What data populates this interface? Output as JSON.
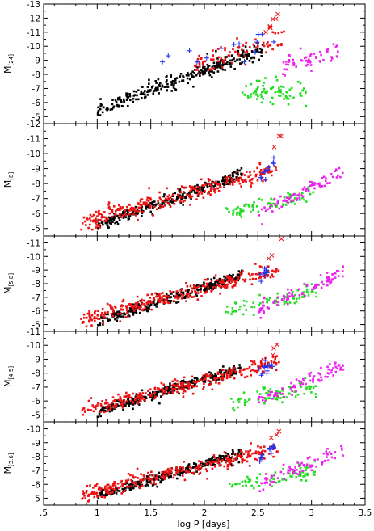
{
  "figure": {
    "xlabel": "log P [days]",
    "colors": {
      "black": "#000000",
      "red": "#ee1111",
      "green": "#22dd22",
      "magenta": "#ee22ee",
      "blue": "#2233ee"
    }
  },
  "chart_data": [
    {
      "type": "scatter",
      "panel": 1,
      "ylabel_main": "M",
      "ylabel_sub": "[24]",
      "xlim": [
        0.5,
        3.5
      ],
      "ylim": [
        -4.5,
        -13
      ],
      "xticks": [
        ".5",
        "1",
        "1.5",
        "2",
        "2.5",
        "3",
        "3.5"
      ],
      "xtick_values": [
        0.5,
        1,
        1.5,
        2,
        2.5,
        3,
        3.5
      ],
      "yticks": [
        "-5",
        "-6",
        "-7",
        "-8",
        "-9",
        "-10",
        "-11",
        "-12",
        "-13"
      ],
      "ytick_values": [
        -5,
        -6,
        -7,
        -8,
        -9,
        -10,
        -11,
        -12,
        -13
      ],
      "clusters": [
        {
          "marker": "dot",
          "color": "black",
          "n": 300,
          "x": [
            1.0,
            2.55
          ],
          "y_start": -5.4,
          "y_end": -9.8,
          "spread": 0.55
        },
        {
          "marker": "dot",
          "color": "red",
          "n": 80,
          "x": [
            1.9,
            2.75
          ],
          "y_start": -8.6,
          "y_end": -10.6,
          "spread": 0.75
        },
        {
          "marker": "dot",
          "color": "green",
          "n": 75,
          "x": [
            2.35,
            2.95
          ],
          "y_start": -6.7,
          "y_end": -6.7,
          "spread": 0.9
        },
        {
          "marker": "dot",
          "color": "magenta",
          "n": 55,
          "x": [
            2.7,
            3.25
          ],
          "y_start": -8.6,
          "y_end": -9.7,
          "spread": 0.8
        },
        {
          "marker": "cross",
          "color": "blue",
          "n": 14,
          "x": [
            1.6,
            2.65
          ],
          "y_start": -8.6,
          "y_end": -10.4,
          "spread": 0.8
        },
        {
          "marker": "x",
          "color": "red",
          "n": 7,
          "x": [
            2.55,
            2.72
          ],
          "y_start": -10.6,
          "y_end": -12.6,
          "spread": 0.4
        }
      ]
    },
    {
      "type": "scatter",
      "panel": 2,
      "ylabel_main": "M",
      "ylabel_sub": "[8]",
      "xlim": [
        0.5,
        3.5
      ],
      "ylim": [
        -4.5,
        -12
      ],
      "yticks": [
        "-5",
        "-6",
        "-7",
        "-8",
        "-9",
        "-10",
        "-11",
        "-12"
      ],
      "ytick_values": [
        -5,
        -6,
        -7,
        -8,
        -9,
        -10,
        -11,
        -12
      ],
      "clusters": [
        {
          "marker": "dot",
          "color": "black",
          "n": 280,
          "x": [
            1.0,
            2.35
          ],
          "y_start": -5.2,
          "y_end": -8.6,
          "spread": 0.4
        },
        {
          "marker": "dot",
          "color": "red",
          "n": 300,
          "x": [
            0.85,
            2.7
          ],
          "y_start": -5.4,
          "y_end": -9.0,
          "spread": 0.55
        },
        {
          "marker": "dot",
          "color": "green",
          "n": 75,
          "x": [
            2.2,
            3.05
          ],
          "y_start": -6.0,
          "y_end": -7.4,
          "spread": 0.55
        },
        {
          "marker": "dot",
          "color": "magenta",
          "n": 80,
          "x": [
            2.5,
            3.3
          ],
          "y_start": -6.0,
          "y_end": -8.8,
          "spread": 0.5
        },
        {
          "marker": "cross",
          "color": "blue",
          "n": 12,
          "x": [
            2.5,
            2.65
          ],
          "y_start": -8.3,
          "y_end": -9.4,
          "spread": 0.5
        },
        {
          "marker": "x",
          "color": "red",
          "n": 3,
          "x": [
            2.6,
            2.72
          ],
          "y_start": -9.6,
          "y_end": -11.4,
          "spread": 0.3
        }
      ]
    },
    {
      "type": "scatter",
      "panel": 3,
      "ylabel_main": "M",
      "ylabel_sub": "[5.8]",
      "xlim": [
        0.5,
        3.5
      ],
      "ylim": [
        -4.5,
        -11.5
      ],
      "yticks": [
        "-5",
        "-6",
        "-7",
        "-8",
        "-9",
        "-10",
        "-11"
      ],
      "ytick_values": [
        -5,
        -6,
        -7,
        -8,
        -9,
        -10,
        -11
      ],
      "clusters": [
        {
          "marker": "dot",
          "color": "black",
          "n": 280,
          "x": [
            1.0,
            2.35
          ],
          "y_start": -5.2,
          "y_end": -8.6,
          "spread": 0.4
        },
        {
          "marker": "dot",
          "color": "red",
          "n": 300,
          "x": [
            0.85,
            2.7
          ],
          "y_start": -5.4,
          "y_end": -9.0,
          "spread": 0.55
        },
        {
          "marker": "dot",
          "color": "green",
          "n": 75,
          "x": [
            2.2,
            3.05
          ],
          "y_start": -6.0,
          "y_end": -7.4,
          "spread": 0.55
        },
        {
          "marker": "dot",
          "color": "magenta",
          "n": 80,
          "x": [
            2.5,
            3.3
          ],
          "y_start": -6.0,
          "y_end": -8.8,
          "spread": 0.5
        },
        {
          "marker": "cross",
          "color": "blue",
          "n": 12,
          "x": [
            2.5,
            2.65
          ],
          "y_start": -8.3,
          "y_end": -9.4,
          "spread": 0.5
        },
        {
          "marker": "x",
          "color": "red",
          "n": 3,
          "x": [
            2.6,
            2.72
          ],
          "y_start": -9.6,
          "y_end": -11.2,
          "spread": 0.3
        }
      ]
    },
    {
      "type": "scatter",
      "panel": 4,
      "ylabel_main": "M",
      "ylabel_sub": "[4.5]",
      "xlim": [
        0.5,
        3.5
      ],
      "ylim": [
        -4.5,
        -11
      ],
      "yticks": [
        "-5",
        "-6",
        "-7",
        "-8",
        "-9",
        "-10",
        "-11"
      ],
      "ytick_values": [
        -5,
        -6,
        -7,
        -8,
        -9,
        -10,
        -11
      ],
      "clusters": [
        {
          "marker": "dot",
          "color": "black",
          "n": 280,
          "x": [
            1.0,
            2.35
          ],
          "y_start": -5.2,
          "y_end": -8.4,
          "spread": 0.4
        },
        {
          "marker": "dot",
          "color": "red",
          "n": 300,
          "x": [
            0.85,
            2.7
          ],
          "y_start": -5.3,
          "y_end": -8.8,
          "spread": 0.55
        },
        {
          "marker": "dot",
          "color": "green",
          "n": 75,
          "x": [
            2.2,
            3.05
          ],
          "y_start": -5.8,
          "y_end": -7.0,
          "spread": 0.55
        },
        {
          "marker": "dot",
          "color": "magenta",
          "n": 80,
          "x": [
            2.5,
            3.3
          ],
          "y_start": -6.0,
          "y_end": -8.6,
          "spread": 0.5
        },
        {
          "marker": "cross",
          "color": "blue",
          "n": 12,
          "x": [
            2.5,
            2.65
          ],
          "y_start": -7.8,
          "y_end": -8.8,
          "spread": 0.5
        },
        {
          "marker": "x",
          "color": "red",
          "n": 3,
          "x": [
            2.6,
            2.72
          ],
          "y_start": -9.0,
          "y_end": -10.6,
          "spread": 0.3
        }
      ]
    },
    {
      "type": "scatter",
      "panel": 5,
      "ylabel_main": "M",
      "ylabel_sub": "[3.6]",
      "xlim": [
        0.5,
        3.5
      ],
      "ylim": [
        -4.5,
        -10.5
      ],
      "yticks": [
        "-5",
        "-6",
        "-7",
        "-8",
        "-9",
        "-10"
      ],
      "ytick_values": [
        -5,
        -6,
        -7,
        -8,
        -9,
        -10
      ],
      "clusters": [
        {
          "marker": "dot",
          "color": "black",
          "n": 280,
          "x": [
            1.0,
            2.35
          ],
          "y_start": -5.2,
          "y_end": -8.2,
          "spread": 0.4
        },
        {
          "marker": "dot",
          "color": "red",
          "n": 300,
          "x": [
            0.85,
            2.7
          ],
          "y_start": -5.3,
          "y_end": -8.6,
          "spread": 0.55
        },
        {
          "marker": "dot",
          "color": "green",
          "n": 75,
          "x": [
            2.2,
            3.05
          ],
          "y_start": -5.8,
          "y_end": -7.0,
          "spread": 0.55
        },
        {
          "marker": "dot",
          "color": "magenta",
          "n": 80,
          "x": [
            2.5,
            3.3
          ],
          "y_start": -6.0,
          "y_end": -8.4,
          "spread": 0.5
        },
        {
          "marker": "cross",
          "color": "blue",
          "n": 12,
          "x": [
            2.5,
            2.65
          ],
          "y_start": -7.8,
          "y_end": -8.8,
          "spread": 0.5
        },
        {
          "marker": "x",
          "color": "red",
          "n": 3,
          "x": [
            2.6,
            2.72
          ],
          "y_start": -8.8,
          "y_end": -10.2,
          "spread": 0.3
        }
      ]
    }
  ]
}
